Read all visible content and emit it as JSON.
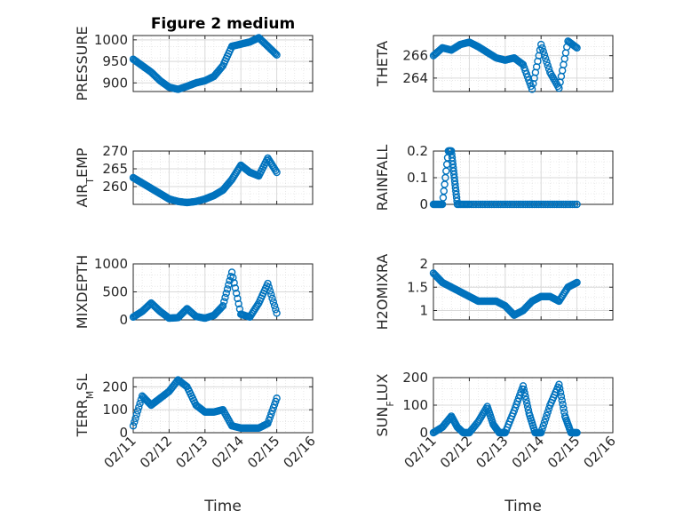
{
  "figure_title": "Figure 2 medium",
  "colors": {
    "marker": "#0072BD",
    "axes": "#262626",
    "grid": "#d9d9d9"
  },
  "time_axis": {
    "xlabel": "Time",
    "ticks": [
      "02/11",
      "02/12",
      "02/13",
      "02/14",
      "02/15",
      "02/16"
    ],
    "xlim": [
      "2000-02-11",
      "2000-02-16"
    ]
  },
  "chart_data": [
    {
      "id": "pressure",
      "type": "scatter",
      "ylabel": "PRESSURE",
      "yticks": [
        "900",
        "950",
        "1000"
      ],
      "ylim": [
        880,
        1010
      ],
      "grid": true,
      "title": "Figure 2 medium",
      "x": [
        "02/11 00:00",
        "02/11 06:00",
        "02/11 12:00",
        "02/11 18:00",
        "02/12 00:00",
        "02/12 06:00",
        "02/12 12:00",
        "02/12 18:00",
        "02/13 00:00",
        "02/13 06:00",
        "02/13 12:00",
        "02/13 18:00",
        "02/14 00:00",
        "02/14 06:00",
        "02/14 12:00",
        "02/14 18:00",
        "02/15 00:00"
      ],
      "y": [
        955,
        940,
        925,
        905,
        890,
        885,
        892,
        900,
        905,
        915,
        940,
        985,
        990,
        995,
        1005,
        985,
        965
      ]
    },
    {
      "id": "theta",
      "type": "scatter",
      "ylabel": "THETA",
      "yticks": [
        "264",
        "266"
      ],
      "ylim": [
        262.8,
        267.8
      ],
      "grid": true,
      "x": [
        "02/11 00:00",
        "02/11 06:00",
        "02/11 12:00",
        "02/11 18:00",
        "02/12 00:00",
        "02/12 06:00",
        "02/12 12:00",
        "02/12 18:00",
        "02/13 00:00",
        "02/13 06:00",
        "02/13 12:00",
        "02/13 18:00",
        "02/14 00:00",
        "02/14 06:00",
        "02/14 12:00",
        "02/14 18:00",
        "02/15 00:00"
      ],
      "y": [
        266.0,
        266.7,
        266.5,
        267.0,
        267.2,
        266.8,
        266.3,
        265.8,
        265.6,
        265.8,
        265.2,
        263.0,
        267.0,
        264.5,
        263.1,
        267.3,
        266.7
      ]
    },
    {
      "id": "air_temp",
      "type": "scatter",
      "ylabel": "AIR_TEMP",
      "yticks": [
        "260",
        "265",
        "270"
      ],
      "ylim": [
        255,
        270
      ],
      "grid": true,
      "x": [
        "02/11 00:00",
        "02/11 06:00",
        "02/11 12:00",
        "02/11 18:00",
        "02/12 00:00",
        "02/12 06:00",
        "02/12 12:00",
        "02/12 18:00",
        "02/13 00:00",
        "02/13 06:00",
        "02/13 12:00",
        "02/13 18:00",
        "02/14 00:00",
        "02/14 06:00",
        "02/14 12:00",
        "02/14 18:00",
        "02/15 00:00"
      ],
      "y": [
        262.5,
        261.0,
        259.5,
        258.0,
        256.5,
        255.8,
        255.5,
        255.8,
        256.5,
        257.5,
        259.0,
        262.0,
        266.0,
        264.0,
        263.0,
        268.0,
        264.0
      ]
    },
    {
      "id": "rainfall",
      "type": "scatter",
      "ylabel": "RAINFALL",
      "yticks": [
        "0",
        "0.1",
        "0.2"
      ],
      "ylim": [
        0,
        0.2
      ],
      "grid": true,
      "x": [
        "02/11 00:00",
        "02/11 06:00",
        "02/11 10:00",
        "02/11 12:00",
        "02/11 14:00",
        "02/11 16:00",
        "02/12 00:00",
        "02/12 12:00",
        "02/13 00:00",
        "02/13 12:00",
        "02/14 00:00",
        "02/14 12:00",
        "02/15 00:00"
      ],
      "y": [
        0,
        0,
        0.2,
        0.2,
        0.1,
        0,
        0,
        0,
        0,
        0,
        0,
        0,
        0
      ]
    },
    {
      "id": "mixdepth",
      "type": "scatter",
      "ylabel": "MIXDEPTH",
      "yticks": [
        "0",
        "500",
        "1000"
      ],
      "ylim": [
        0,
        1000
      ],
      "grid": true,
      "x": [
        "02/11 00:00",
        "02/11 06:00",
        "02/11 12:00",
        "02/11 18:00",
        "02/12 00:00",
        "02/12 06:00",
        "02/12 12:00",
        "02/12 18:00",
        "02/13 00:00",
        "02/13 06:00",
        "02/13 12:00",
        "02/13 18:00",
        "02/14 00:00",
        "02/14 06:00",
        "02/14 12:00",
        "02/14 18:00",
        "02/15 00:00"
      ],
      "y": [
        50,
        150,
        300,
        150,
        30,
        40,
        200,
        60,
        30,
        80,
        250,
        850,
        100,
        50,
        300,
        650,
        120
      ]
    },
    {
      "id": "h2omixra",
      "type": "scatter",
      "ylabel": "H2OMIXRA",
      "yticks": [
        "1",
        "1.5",
        "2"
      ],
      "ylim": [
        0.8,
        2
      ],
      "grid": true,
      "x": [
        "02/11 00:00",
        "02/11 06:00",
        "02/11 12:00",
        "02/11 18:00",
        "02/12 00:00",
        "02/12 06:00",
        "02/12 12:00",
        "02/12 18:00",
        "02/13 00:00",
        "02/13 06:00",
        "02/13 12:00",
        "02/13 18:00",
        "02/14 00:00",
        "02/14 06:00",
        "02/14 12:00",
        "02/14 18:00",
        "02/15 00:00"
      ],
      "y": [
        1.8,
        1.6,
        1.5,
        1.4,
        1.3,
        1.2,
        1.2,
        1.2,
        1.1,
        0.9,
        1.0,
        1.2,
        1.3,
        1.3,
        1.2,
        1.5,
        1.6
      ]
    },
    {
      "id": "terr_msl",
      "type": "scatter",
      "ylabel": "TERR_MSL",
      "yticks": [
        "0",
        "100",
        "200"
      ],
      "ylim": [
        0,
        240
      ],
      "grid": true,
      "x": [
        "02/11 00:00",
        "02/11 06:00",
        "02/11 12:00",
        "02/11 18:00",
        "02/12 00:00",
        "02/12 06:00",
        "02/12 12:00",
        "02/12 18:00",
        "02/13 00:00",
        "02/13 06:00",
        "02/13 12:00",
        "02/13 18:00",
        "02/14 00:00",
        "02/14 06:00",
        "02/14 12:00",
        "02/14 18:00",
        "02/15 00:00"
      ],
      "y": [
        30,
        160,
        120,
        150,
        180,
        230,
        200,
        120,
        90,
        90,
        100,
        30,
        20,
        20,
        20,
        40,
        150
      ]
    },
    {
      "id": "sun_flux",
      "type": "scatter",
      "ylabel": "SUN_FLUX",
      "yticks": [
        "0",
        "100",
        "200"
      ],
      "ylim": [
        0,
        200
      ],
      "grid": true,
      "x": [
        "02/11 00:00",
        "02/11 06:00",
        "02/11 12:00",
        "02/11 16:00",
        "02/11 20:00",
        "02/12 00:00",
        "02/12 06:00",
        "02/12 12:00",
        "02/12 16:00",
        "02/12 20:00",
        "02/13 00:00",
        "02/13 06:00",
        "02/13 12:00",
        "02/13 16:00",
        "02/13 20:00",
        "02/14 00:00",
        "02/14 06:00",
        "02/14 12:00",
        "02/14 16:00",
        "02/14 20:00",
        "02/15 00:00"
      ],
      "y": [
        0,
        20,
        60,
        20,
        0,
        0,
        40,
        95,
        30,
        0,
        0,
        80,
        170,
        70,
        0,
        0,
        100,
        175,
        60,
        0,
        0
      ]
    }
  ]
}
